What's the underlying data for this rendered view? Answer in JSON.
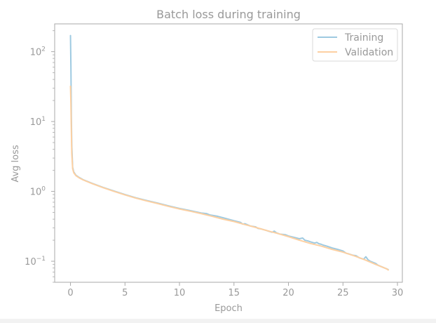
{
  "chart_data": {
    "type": "line",
    "title": "Batch loss during training",
    "xlabel": "Epoch",
    "ylabel": "Avg loss",
    "xlim": [
      -1.45,
      30.45
    ],
    "ylim": [
      0.05,
      250
    ],
    "yscale": "log",
    "x_ticks": [
      "0",
      "5",
      "10",
      "15",
      "20",
      "25",
      "30"
    ],
    "x_tick_values": [
      0,
      5,
      10,
      15,
      20,
      25,
      30
    ],
    "y_ticks": [
      {
        "value": 100,
        "base": "10",
        "exp": "2"
      },
      {
        "value": 10,
        "base": "10",
        "exp": "1"
      },
      {
        "value": 1,
        "base": "10",
        "exp": "0"
      },
      {
        "value": 0.1,
        "base": "10",
        "exp": "−1"
      }
    ],
    "grid": false,
    "legend_position": "top-right",
    "series": [
      {
        "name": "Training",
        "color": "#9ecae1",
        "x": [
          0,
          0.04,
          0.08,
          0.12,
          0.2,
          0.3,
          0.5,
          0.8,
          1.2,
          2,
          3,
          4,
          5,
          6,
          7,
          8,
          9,
          10,
          11,
          12,
          12.5,
          12.8,
          13.5,
          14,
          15,
          15.6,
          15.8,
          16,
          16.5,
          17,
          17.2,
          17.5,
          18,
          18.5,
          18.7,
          18.9,
          19.2,
          19.7,
          20,
          20.5,
          21,
          21.3,
          21.5,
          21.8,
          22,
          22.4,
          22.6,
          22.8,
          23,
          23.2,
          23.5,
          24,
          24.5,
          25,
          25.3,
          25.5,
          25.9,
          26.2,
          26.5,
          26.9,
          27.1,
          27.3,
          27.5,
          28,
          28.2,
          28.5,
          29,
          29.15
        ],
        "y": [
          170,
          60,
          12,
          4.5,
          2.2,
          1.9,
          1.7,
          1.58,
          1.46,
          1.3,
          1.14,
          1.01,
          0.9,
          0.81,
          0.74,
          0.68,
          0.62,
          0.57,
          0.53,
          0.49,
          0.48,
          0.46,
          0.44,
          0.42,
          0.38,
          0.36,
          0.34,
          0.345,
          0.32,
          0.31,
          0.295,
          0.29,
          0.275,
          0.26,
          0.27,
          0.255,
          0.245,
          0.24,
          0.23,
          0.22,
          0.21,
          0.215,
          0.2,
          0.195,
          0.19,
          0.182,
          0.186,
          0.178,
          0.175,
          0.17,
          0.165,
          0.155,
          0.148,
          0.14,
          0.13,
          0.128,
          0.122,
          0.12,
          0.112,
          0.107,
          0.116,
          0.105,
          0.1,
          0.093,
          0.088,
          0.084,
          0.078,
          0.076
        ]
      },
      {
        "name": "Validation",
        "color": "#fdd0a2",
        "x": [
          0,
          0.04,
          0.08,
          0.12,
          0.2,
          0.3,
          0.5,
          0.8,
          1.2,
          2,
          3,
          4,
          5,
          6,
          7,
          8,
          9,
          10,
          11,
          12,
          13,
          14,
          15,
          16,
          17,
          18,
          19,
          20,
          21,
          22,
          23,
          24,
          25,
          26,
          27,
          28,
          29,
          29.15
        ],
        "y": [
          32,
          18,
          7.5,
          3.5,
          2.1,
          1.85,
          1.68,
          1.56,
          1.45,
          1.29,
          1.13,
          1.0,
          0.89,
          0.8,
          0.73,
          0.67,
          0.61,
          0.56,
          0.52,
          0.48,
          0.44,
          0.4,
          0.37,
          0.335,
          0.305,
          0.275,
          0.25,
          0.225,
          0.2,
          0.18,
          0.165,
          0.148,
          0.135,
          0.12,
          0.105,
          0.09,
          0.078,
          0.075
        ]
      }
    ]
  }
}
